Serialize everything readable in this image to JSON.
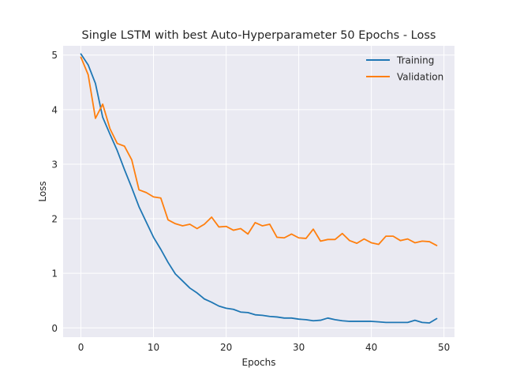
{
  "chart_data": {
    "type": "line",
    "title": "Single LSTM with best Auto-Hyperparameter 50 Epochs - Loss",
    "xlabel": "Epochs",
    "ylabel": "Loss",
    "xlim": [
      -2.45,
      51.45
    ],
    "ylim": [
      -0.17,
      5.17
    ],
    "xticks": [
      0,
      10,
      20,
      30,
      40,
      50
    ],
    "yticks": [
      0,
      1,
      2,
      3,
      4,
      5
    ],
    "grid": true,
    "background": "#eaeaf2",
    "legend_position": "top-right",
    "series": [
      {
        "name": "Training",
        "color": "#1f77b4",
        "x": [
          0,
          1,
          2,
          3,
          4,
          5,
          6,
          7,
          8,
          9,
          10,
          11,
          12,
          13,
          14,
          15,
          16,
          17,
          18,
          19,
          20,
          21,
          22,
          23,
          24,
          25,
          26,
          27,
          28,
          29,
          30,
          31,
          32,
          33,
          34,
          35,
          36,
          37,
          38,
          39,
          40,
          41,
          42,
          43,
          44,
          45,
          46,
          47,
          48,
          49
        ],
        "values": [
          5.02,
          4.82,
          4.48,
          3.86,
          3.55,
          3.25,
          2.9,
          2.57,
          2.22,
          1.94,
          1.66,
          1.44,
          1.2,
          0.99,
          0.86,
          0.73,
          0.64,
          0.53,
          0.47,
          0.4,
          0.36,
          0.34,
          0.29,
          0.28,
          0.24,
          0.23,
          0.21,
          0.2,
          0.18,
          0.18,
          0.16,
          0.15,
          0.13,
          0.14,
          0.18,
          0.15,
          0.13,
          0.12,
          0.12,
          0.12,
          0.12,
          0.11,
          0.1,
          0.1,
          0.1,
          0.1,
          0.14,
          0.1,
          0.09,
          0.17
        ]
      },
      {
        "name": "Validation",
        "color": "#ff7f0e",
        "x": [
          0,
          1,
          2,
          3,
          4,
          5,
          6,
          7,
          8,
          9,
          10,
          11,
          12,
          13,
          14,
          15,
          16,
          17,
          18,
          19,
          20,
          21,
          22,
          23,
          24,
          25,
          26,
          27,
          28,
          29,
          30,
          31,
          32,
          33,
          34,
          35,
          36,
          37,
          38,
          39,
          40,
          41,
          42,
          43,
          44,
          45,
          46,
          47,
          48,
          49
        ],
        "values": [
          4.96,
          4.64,
          3.84,
          4.1,
          3.65,
          3.38,
          3.33,
          3.08,
          2.53,
          2.48,
          2.4,
          2.38,
          1.98,
          1.91,
          1.87,
          1.9,
          1.82,
          1.9,
          2.03,
          1.85,
          1.86,
          1.79,
          1.82,
          1.72,
          1.93,
          1.87,
          1.9,
          1.66,
          1.65,
          1.72,
          1.65,
          1.64,
          1.81,
          1.59,
          1.62,
          1.62,
          1.73,
          1.6,
          1.55,
          1.63,
          1.56,
          1.53,
          1.68,
          1.68,
          1.6,
          1.63,
          1.56,
          1.59,
          1.58,
          1.51
        ]
      }
    ]
  }
}
